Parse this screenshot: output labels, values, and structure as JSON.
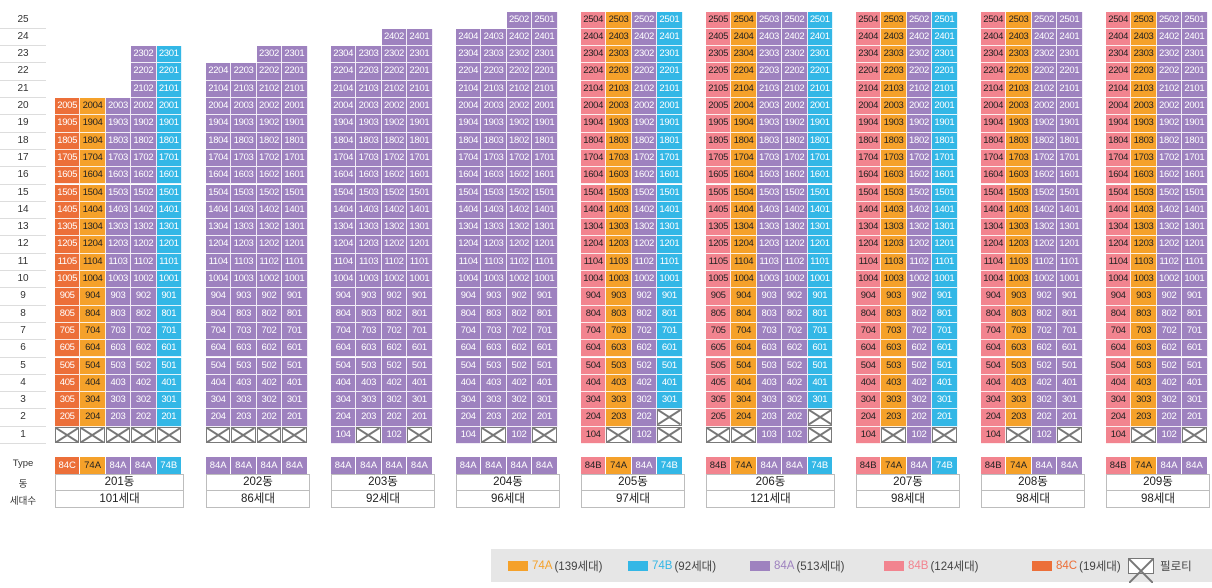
{
  "floors": [
    "25",
    "24",
    "23",
    "22",
    "21",
    "20",
    "19",
    "18",
    "17",
    "16",
    "15",
    "14",
    "13",
    "12",
    "11",
    "10",
    "9",
    "8",
    "7",
    "6",
    "5",
    "4",
    "3",
    "2",
    "1"
  ],
  "row_labels": {
    "type": "Type",
    "dong": "동",
    "households": "세대수"
  },
  "colors": {
    "74A": "#F5A12A",
    "74B": "#33B7E6",
    "84A": "#9E82BF",
    "84B": "#F2848F",
    "84C": "#EC6F39"
  },
  "buildings": [
    {
      "name": "201동",
      "households": "101세대",
      "types": [
        "84C",
        "74A",
        "84A",
        "84A",
        "74B"
      ],
      "lines": [
        {
          "line": "05",
          "type": "84C",
          "top": 20,
          "bottom": 2,
          "pilotis": [
            1
          ]
        },
        {
          "line": "04",
          "type": "74A",
          "top": 20,
          "bottom": 2,
          "pilotis": [
            1
          ]
        },
        {
          "line": "03",
          "type": "84A",
          "top": 20,
          "bottom": 2,
          "pilotis": [
            1
          ]
        },
        {
          "line": "02",
          "type": "84A",
          "top": 23,
          "bottom": 2,
          "pilotis": [
            1
          ]
        },
        {
          "line": "01",
          "type": "74B",
          "top": 23,
          "bottom": 2,
          "pilotis": [
            1
          ]
        }
      ]
    },
    {
      "name": "202동",
      "households": "86세대",
      "types": [
        "84A",
        "84A",
        "84A",
        "84A"
      ],
      "lines": [
        {
          "line": "04",
          "type": "84A",
          "top": 22,
          "bottom": 2,
          "pilotis": [
            1
          ]
        },
        {
          "line": "03",
          "type": "84A",
          "top": 22,
          "bottom": 2,
          "pilotis": [
            1
          ]
        },
        {
          "line": "02",
          "type": "84A",
          "top": 23,
          "bottom": 2,
          "pilotis": [
            1
          ]
        },
        {
          "line": "01",
          "type": "84A",
          "top": 23,
          "bottom": 2,
          "pilotis": [
            1
          ]
        }
      ]
    },
    {
      "name": "203동",
      "households": "92세대",
      "types": [
        "84A",
        "84A",
        "84A",
        "84A"
      ],
      "lines": [
        {
          "line": "04",
          "type": "84A",
          "top": 23,
          "bottom": 1,
          "pilotis": []
        },
        {
          "line": "03",
          "type": "84A",
          "top": 23,
          "bottom": 2,
          "pilotis": [
            1
          ]
        },
        {
          "line": "02",
          "type": "84A",
          "top": 24,
          "bottom": 1,
          "pilotis": []
        },
        {
          "line": "01",
          "type": "84A",
          "top": 24,
          "bottom": 2,
          "pilotis": [
            1
          ]
        }
      ]
    },
    {
      "name": "204동",
      "households": "96세대",
      "types": [
        "84A",
        "84A",
        "84A",
        "84A"
      ],
      "lines": [
        {
          "line": "04",
          "type": "84A",
          "top": 24,
          "bottom": 1,
          "pilotis": []
        },
        {
          "line": "03",
          "type": "84A",
          "top": 24,
          "bottom": 2,
          "pilotis": [
            1
          ]
        },
        {
          "line": "02",
          "type": "84A",
          "top": 25,
          "bottom": 1,
          "pilotis": []
        },
        {
          "line": "01",
          "type": "84A",
          "top": 25,
          "bottom": 2,
          "pilotis": [
            1
          ]
        }
      ]
    },
    {
      "name": "205동",
      "households": "97세대",
      "types": [
        "84B",
        "74A",
        "84A",
        "74B"
      ],
      "lines": [
        {
          "line": "04",
          "type": "84B",
          "top": 25,
          "bottom": 1,
          "pilotis": []
        },
        {
          "line": "03",
          "type": "74A",
          "top": 25,
          "bottom": 2,
          "pilotis": [
            1
          ]
        },
        {
          "line": "02",
          "type": "84A",
          "top": 25,
          "bottom": 1,
          "pilotis": []
        },
        {
          "line": "01",
          "type": "74B",
          "top": 25,
          "bottom": 3,
          "pilotis": [
            2,
            1
          ]
        }
      ]
    },
    {
      "name": "206동",
      "households": "121세대",
      "types": [
        "84B",
        "74A",
        "84A",
        "84A",
        "74B"
      ],
      "lines": [
        {
          "line": "05",
          "type": "84B",
          "top": 25,
          "bottom": 2,
          "pilotis": [
            1
          ]
        },
        {
          "line": "04",
          "type": "74A",
          "top": 25,
          "bottom": 2,
          "pilotis": [
            1
          ]
        },
        {
          "line": "03",
          "type": "84A",
          "top": 25,
          "bottom": 1,
          "pilotis": []
        },
        {
          "line": "02",
          "type": "84A",
          "top": 25,
          "bottom": 1,
          "pilotis": []
        },
        {
          "line": "01",
          "type": "74B",
          "top": 25,
          "bottom": 3,
          "pilotis": [
            2,
            1
          ]
        }
      ]
    },
    {
      "name": "207동",
      "households": "98세대",
      "types": [
        "84B",
        "74A",
        "84A",
        "74B"
      ],
      "lines": [
        {
          "line": "04",
          "type": "84B",
          "top": 25,
          "bottom": 1,
          "pilotis": []
        },
        {
          "line": "03",
          "type": "74A",
          "top": 25,
          "bottom": 2,
          "pilotis": [
            1
          ]
        },
        {
          "line": "02",
          "type": "84A",
          "top": 25,
          "bottom": 1,
          "pilotis": []
        },
        {
          "line": "01",
          "type": "74B",
          "top": 25,
          "bottom": 2,
          "pilotis": [
            1
          ]
        }
      ]
    },
    {
      "name": "208동",
      "households": "98세대",
      "types": [
        "84B",
        "74A",
        "84A",
        "84A"
      ],
      "lines": [
        {
          "line": "04",
          "type": "84B",
          "top": 25,
          "bottom": 1,
          "pilotis": []
        },
        {
          "line": "03",
          "type": "74A",
          "top": 25,
          "bottom": 2,
          "pilotis": [
            1
          ]
        },
        {
          "line": "02",
          "type": "84A",
          "top": 25,
          "bottom": 1,
          "pilotis": []
        },
        {
          "line": "01",
          "type": "84A",
          "top": 25,
          "bottom": 2,
          "pilotis": [
            1
          ]
        }
      ]
    },
    {
      "name": "209동",
      "households": "98세대",
      "types": [
        "84B",
        "74A",
        "84A",
        "84A"
      ],
      "lines": [
        {
          "line": "04",
          "type": "84B",
          "top": 25,
          "bottom": 1,
          "pilotis": []
        },
        {
          "line": "03",
          "type": "74A",
          "top": 25,
          "bottom": 2,
          "pilotis": [
            1
          ]
        },
        {
          "line": "02",
          "type": "84A",
          "top": 25,
          "bottom": 1,
          "pilotis": []
        },
        {
          "line": "01",
          "type": "84A",
          "top": 25,
          "bottom": 2,
          "pilotis": [
            1
          ]
        }
      ]
    }
  ],
  "legend": [
    {
      "key": "74A",
      "label": "74A",
      "count": "(139세대)",
      "color": "#F5A12A"
    },
    {
      "key": "74B",
      "label": "74B",
      "count": "(92세대)",
      "color": "#33B7E6"
    },
    {
      "key": "84A",
      "label": "84A",
      "count": "(513세대)",
      "color": "#9E82BF"
    },
    {
      "key": "84B",
      "label": "84B",
      "count": "(124세대)",
      "color": "#F2848F"
    },
    {
      "key": "84C",
      "label": "84C",
      "count": "(19세대)",
      "color": "#EC6F39"
    }
  ],
  "legend_piloti_label": "필로티"
}
